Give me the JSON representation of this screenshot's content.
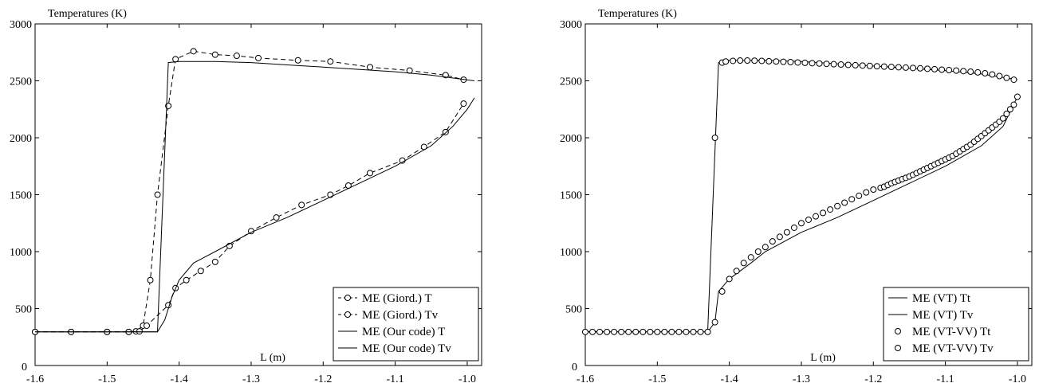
{
  "chart_data": [
    {
      "type": "line",
      "ylabel": "Temperatures (K)",
      "xlabel": "L (m)",
      "xlim": [
        -1.6,
        -0.98
      ],
      "ylim": [
        0,
        3000
      ],
      "xticks": [
        -1.6,
        -1.5,
        -1.4,
        -1.3,
        -1.2,
        -1.1,
        -1.0
      ],
      "xtick_labels": [
        "-1.6",
        "-1.5",
        "-1.4",
        "-1.3",
        "-1.2",
        "-1.1",
        "-1.0"
      ],
      "yticks": [
        500,
        1000,
        1500,
        2000,
        2500,
        3000
      ],
      "ytick_labels": [
        "500",
        "1000",
        "1500",
        "2000",
        "2500",
        "3000"
      ],
      "zero_label": "0",
      "legend_position": "bottom-right",
      "series": [
        {
          "name": "ME (Giord.) T",
          "style": "dashed",
          "marker": "circle",
          "x": [
            -1.6,
            -1.55,
            -1.5,
            -1.47,
            -1.46,
            -1.45,
            -1.44,
            -1.43,
            -1.415,
            -1.405,
            -1.38,
            -1.35,
            -1.32,
            -1.29,
            -1.235,
            -1.19,
            -1.135,
            -1.08,
            -1.03,
            -1.005
          ],
          "y": [
            295,
            295,
            295,
            295,
            300,
            350,
            750,
            1500,
            2280,
            2690,
            2760,
            2730,
            2720,
            2700,
            2680,
            2670,
            2620,
            2590,
            2550,
            2510
          ]
        },
        {
          "name": "ME (Giord.) Tv",
          "style": "dashed",
          "marker": "circle",
          "x": [
            -1.6,
            -1.55,
            -1.5,
            -1.47,
            -1.455,
            -1.445,
            -1.415,
            -1.405,
            -1.39,
            -1.37,
            -1.35,
            -1.33,
            -1.3,
            -1.265,
            -1.23,
            -1.19,
            -1.165,
            -1.135,
            -1.09,
            -1.06,
            -1.03,
            -1.005
          ],
          "y": [
            295,
            295,
            295,
            295,
            300,
            350,
            530,
            680,
            750,
            830,
            910,
            1050,
            1180,
            1300,
            1410,
            1500,
            1580,
            1690,
            1800,
            1920,
            2050,
            2300
          ]
        },
        {
          "name": "ME (Our code) T",
          "style": "solid",
          "marker": "none",
          "x": [
            -1.6,
            -1.43,
            -1.415,
            -1.4,
            -1.35,
            -1.3,
            -1.2,
            -1.1,
            -1.05,
            -0.99
          ],
          "y": [
            295,
            295,
            2660,
            2670,
            2670,
            2660,
            2620,
            2580,
            2550,
            2500
          ]
        },
        {
          "name": "ME (Our code) Tv",
          "style": "solid",
          "marker": "none",
          "x": [
            -1.6,
            -1.43,
            -1.42,
            -1.41,
            -1.4,
            -1.38,
            -1.35,
            -1.3,
            -1.25,
            -1.2,
            -1.15,
            -1.1,
            -1.05,
            -1.02,
            -1.0,
            -0.99
          ],
          "y": [
            295,
            295,
            400,
            600,
            750,
            900,
            1000,
            1170,
            1300,
            1450,
            1600,
            1750,
            1930,
            2100,
            2250,
            2350
          ]
        }
      ]
    },
    {
      "type": "line",
      "ylabel": "Temperatures (K)",
      "xlabel": "L (m)",
      "xlim": [
        -1.6,
        -0.98
      ],
      "ylim": [
        0,
        3000
      ],
      "xticks": [
        -1.6,
        -1.5,
        -1.4,
        -1.3,
        -1.2,
        -1.1,
        -1.0
      ],
      "xtick_labels": [
        "-1.6",
        "-1.5",
        "-1.4",
        "-1.3",
        "-1.2",
        "-1.1",
        "-1.0"
      ],
      "yticks": [
        500,
        1000,
        1500,
        2000,
        2500,
        3000
      ],
      "ytick_labels": [
        "500",
        "1000",
        "1500",
        "2000",
        "2500",
        "3000"
      ],
      "zero_label": "0",
      "legend_position": "bottom-right",
      "series": [
        {
          "name": "ME (VT) Tt",
          "style": "solid",
          "marker": "none",
          "x": [
            -1.6,
            -1.43,
            -1.415,
            -1.4,
            -1.35,
            -1.3,
            -1.25,
            -1.2,
            -1.15,
            -1.1,
            -1.05,
            -1.02,
            -1.0
          ],
          "y": [
            295,
            295,
            2660,
            2680,
            2680,
            2670,
            2650,
            2630,
            2610,
            2590,
            2560,
            2530,
            2510
          ]
        },
        {
          "name": "ME (VT) Tv",
          "style": "solid",
          "marker": "none",
          "x": [
            -1.6,
            -1.43,
            -1.42,
            -1.415,
            -1.4,
            -1.37,
            -1.35,
            -1.3,
            -1.25,
            -1.2,
            -1.15,
            -1.1,
            -1.05,
            -1.02,
            -1.0
          ],
          "y": [
            295,
            295,
            380,
            650,
            760,
            900,
            1000,
            1170,
            1300,
            1450,
            1600,
            1750,
            1930,
            2100,
            2360
          ]
        },
        {
          "name": "ME (VT-VV) Tt",
          "style": "none",
          "marker": "circle",
          "x": [
            -1.6,
            -1.59,
            -1.58,
            -1.57,
            -1.56,
            -1.55,
            -1.54,
            -1.53,
            -1.52,
            -1.51,
            -1.5,
            -1.49,
            -1.48,
            -1.47,
            -1.46,
            -1.45,
            -1.44,
            -1.43,
            -1.42,
            -1.41,
            -1.405,
            -1.395,
            -1.385,
            -1.375,
            -1.365,
            -1.355,
            -1.345,
            -1.335,
            -1.325,
            -1.315,
            -1.305,
            -1.295,
            -1.285,
            -1.275,
            -1.265,
            -1.255,
            -1.245,
            -1.235,
            -1.225,
            -1.215,
            -1.205,
            -1.195,
            -1.185,
            -1.175,
            -1.165,
            -1.155,
            -1.145,
            -1.135,
            -1.125,
            -1.115,
            -1.105,
            -1.095,
            -1.085,
            -1.075,
            -1.065,
            -1.055,
            -1.045,
            -1.035,
            -1.025,
            -1.015,
            -1.005
          ],
          "y": [
            295,
            295,
            295,
            295,
            295,
            295,
            295,
            295,
            295,
            295,
            295,
            295,
            295,
            295,
            295,
            295,
            295,
            295,
            2000,
            2660,
            2670,
            2675,
            2678,
            2678,
            2677,
            2675,
            2672,
            2670,
            2667,
            2664,
            2661,
            2658,
            2655,
            2652,
            2649,
            2646,
            2643,
            2640,
            2637,
            2634,
            2631,
            2628,
            2625,
            2622,
            2619,
            2616,
            2613,
            2610,
            2606,
            2602,
            2598,
            2594,
            2590,
            2585,
            2580,
            2574,
            2566,
            2556,
            2542,
            2526,
            2510
          ]
        },
        {
          "name": "ME (VT-VV) Tv",
          "style": "none",
          "marker": "circle",
          "x": [
            -1.42,
            -1.41,
            -1.4,
            -1.39,
            -1.38,
            -1.37,
            -1.36,
            -1.35,
            -1.34,
            -1.33,
            -1.32,
            -1.31,
            -1.3,
            -1.29,
            -1.28,
            -1.27,
            -1.26,
            -1.25,
            -1.24,
            -1.23,
            -1.22,
            -1.21,
            -1.2,
            -1.19,
            -1.185,
            -1.18,
            -1.175,
            -1.17,
            -1.165,
            -1.16,
            -1.155,
            -1.15,
            -1.145,
            -1.14,
            -1.135,
            -1.13,
            -1.125,
            -1.12,
            -1.115,
            -1.11,
            -1.105,
            -1.1,
            -1.095,
            -1.09,
            -1.085,
            -1.08,
            -1.075,
            -1.07,
            -1.065,
            -1.06,
            -1.055,
            -1.05,
            -1.045,
            -1.04,
            -1.035,
            -1.03,
            -1.025,
            -1.02,
            -1.015,
            -1.01,
            -1.005,
            -1.0
          ],
          "y": [
            380,
            650,
            760,
            830,
            900,
            950,
            1000,
            1040,
            1090,
            1130,
            1170,
            1210,
            1250,
            1280,
            1310,
            1340,
            1370,
            1400,
            1430,
            1460,
            1490,
            1520,
            1545,
            1560,
            1570,
            1585,
            1600,
            1612,
            1624,
            1636,
            1648,
            1660,
            1675,
            1690,
            1705,
            1720,
            1735,
            1750,
            1765,
            1780,
            1795,
            1810,
            1825,
            1840,
            1860,
            1880,
            1900,
            1920,
            1940,
            1965,
            1990,
            2015,
            2040,
            2065,
            2090,
            2115,
            2140,
            2170,
            2210,
            2250,
            2290,
            2360
          ]
        }
      ]
    }
  ]
}
